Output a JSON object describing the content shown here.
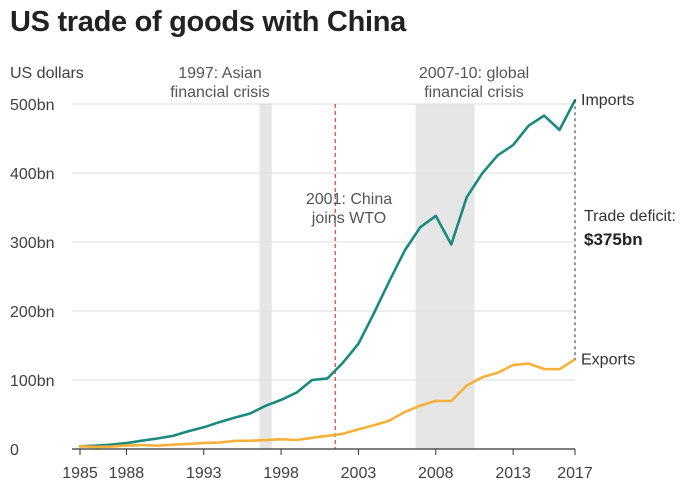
{
  "chart_data": {
    "type": "line",
    "title": "US trade of goods with China",
    "ylabel": "US dollars",
    "ylim": [
      0,
      500
    ],
    "yticks": [
      0,
      100,
      200,
      300,
      400,
      500
    ],
    "ytick_labels": [
      "0",
      "100bn",
      "200bn",
      "300bn",
      "400bn",
      "500bn"
    ],
    "xlim": [
      1985,
      2017
    ],
    "xticks": [
      1985,
      1988,
      1993,
      1998,
      2003,
      2008,
      2013,
      2017
    ],
    "xtick_labels": [
      "1985",
      "1988",
      "1993",
      "1998",
      "2003",
      "2008",
      "2013",
      "2017"
    ],
    "grid": true,
    "x": [
      1985,
      1986,
      1987,
      1988,
      1989,
      1990,
      1991,
      1992,
      1993,
      1994,
      1995,
      1996,
      1997,
      1998,
      1999,
      2000,
      2001,
      2002,
      2003,
      2004,
      2005,
      2006,
      2007,
      2008,
      2009,
      2010,
      2011,
      2012,
      2013,
      2014,
      2015,
      2016,
      2017
    ],
    "series": [
      {
        "name": "Imports",
        "color": "#1a8a7e",
        "values": [
          3.9,
          4.8,
          6.3,
          8.5,
          12.0,
          15.2,
          19.0,
          25.7,
          31.5,
          38.8,
          45.5,
          51.5,
          62.6,
          71.2,
          81.8,
          100.0,
          102.3,
          125.2,
          152.4,
          196.7,
          243.5,
          287.8,
          321.4,
          337.8,
          296.4,
          364.9,
          399.4,
          425.6,
          440.4,
          468.5,
          483.2,
          462.5,
          505.5
        ]
      },
      {
        "name": "Exports",
        "color": "#f6b13a",
        "values": [
          3.9,
          3.1,
          3.5,
          5.0,
          5.8,
          4.8,
          6.3,
          7.4,
          8.8,
          9.3,
          11.8,
          12.0,
          12.9,
          14.2,
          13.1,
          16.2,
          19.2,
          22.1,
          28.4,
          34.4,
          41.2,
          53.7,
          62.9,
          69.7,
          69.5,
          91.9,
          103.9,
          110.5,
          121.7,
          123.7,
          115.9,
          115.6,
          129.9
        ]
      }
    ],
    "shaded_periods": [
      {
        "start": 1996.6,
        "end": 1997.4,
        "label": [
          "1997: Asian",
          "financial crisis"
        ]
      },
      {
        "start": 2006.7,
        "end": 2010.5,
        "label": [
          "2007-10: global",
          "financial crisis"
        ]
      }
    ],
    "event_line": {
      "x": 2001.5,
      "color": "#d9402a",
      "label": [
        "2001: China",
        "joins WTO"
      ]
    },
    "deficit": {
      "label": "Trade deficit:",
      "value": "$375bn"
    }
  }
}
